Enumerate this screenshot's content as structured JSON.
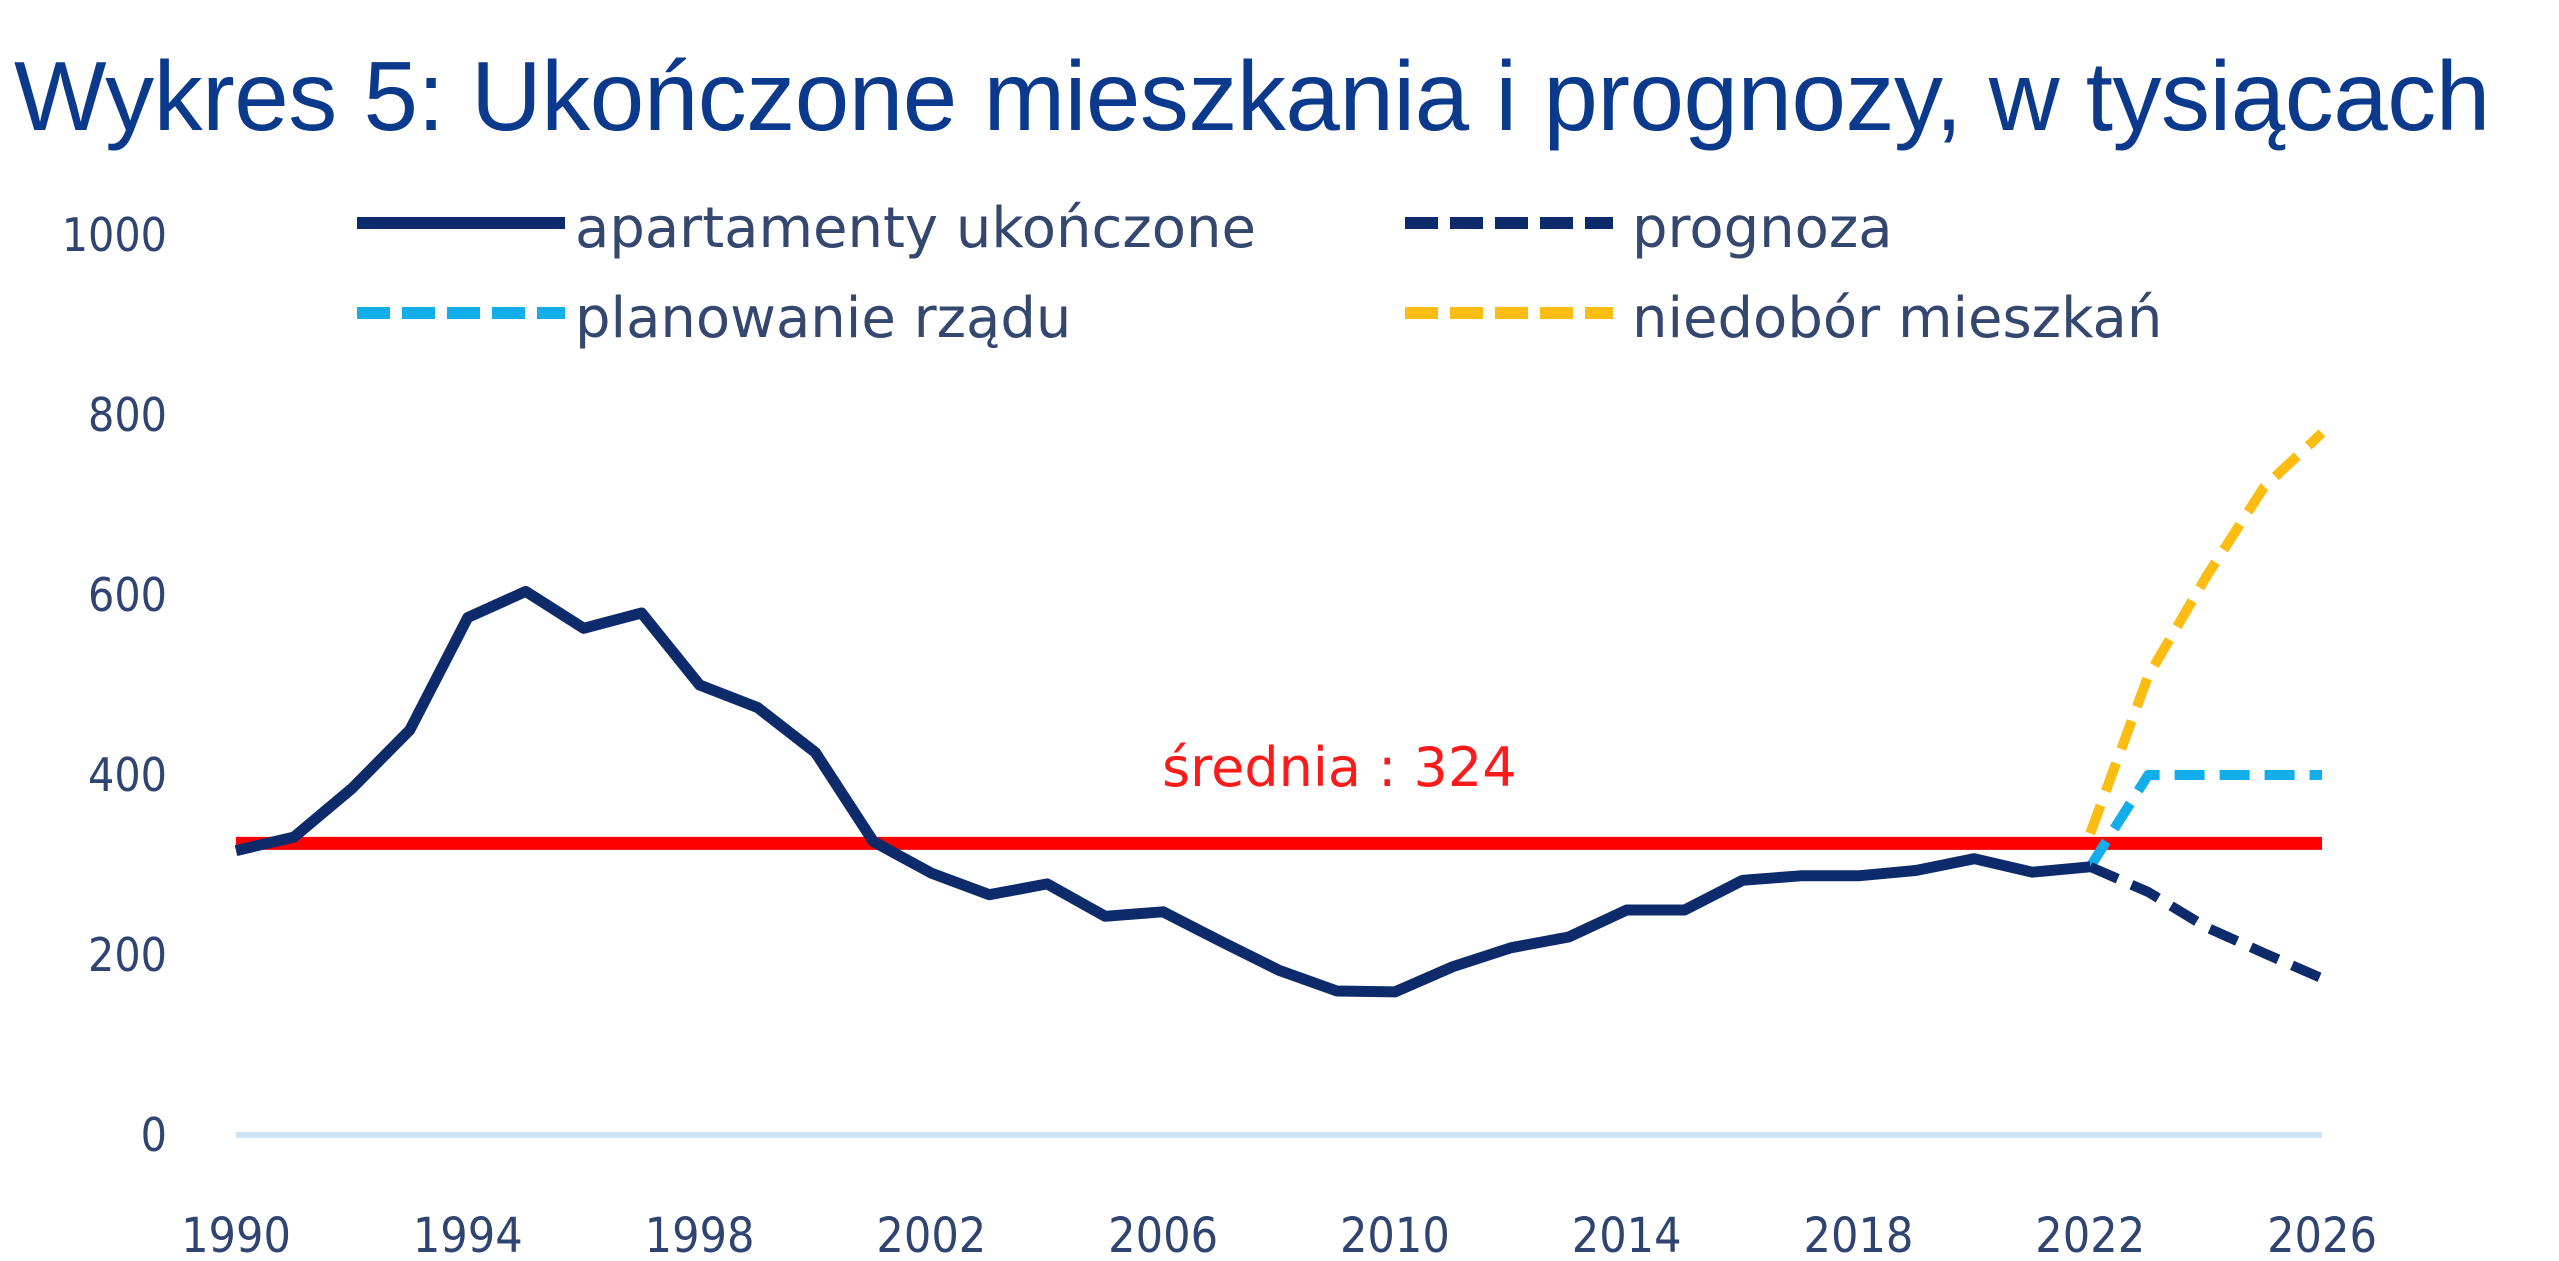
{
  "title": "Wykres 5: Ukończone mieszkania i prognozy, w tysiącach",
  "legend": [
    {
      "label": "apartamenty ukończone",
      "color": "#0d2b6b",
      "style": "solid"
    },
    {
      "label": "prognoza",
      "color": "#0d2b6b",
      "style": "dashed"
    },
    {
      "label": "planowanie rządu",
      "color": "#12aeea",
      "style": "dashed"
    },
    {
      "label": "niedobór mieszkań",
      "color": "#fbbd12",
      "style": "dashed"
    }
  ],
  "average_label": "średnia : 324",
  "colors": {
    "average": "#ff0000",
    "gridline": "#cfe3f7",
    "title": "#0b3a8c",
    "axis_text": "#2f4470"
  },
  "y_ticks": [
    "0",
    "200",
    "400",
    "600",
    "800",
    "1000"
  ],
  "x_ticks": [
    "1990",
    "1994",
    "1998",
    "2002",
    "2006",
    "2010",
    "2014",
    "2018",
    "2022",
    "2026"
  ],
  "chart_data": {
    "type": "line",
    "title": "Wykres 5: Ukończone mieszkania i prognozy, w tysiącach",
    "xlabel": "",
    "ylabel": "",
    "ylim": [
      0,
      1000
    ],
    "xlim": [
      1990,
      2026
    ],
    "grid": "only baseline at 0",
    "legend_position": "top",
    "series": [
      {
        "name": "apartamenty ukończone",
        "style": "solid",
        "color": "#0d2b6b",
        "x": [
          1990,
          1991,
          1992,
          1993,
          1994,
          1995,
          1996,
          1997,
          1998,
          1999,
          2000,
          2001,
          2002,
          2003,
          2004,
          2005,
          2006,
          2007,
          2008,
          2009,
          2010,
          2011,
          2012,
          2013,
          2014,
          2015,
          2016,
          2017,
          2018,
          2019,
          2020,
          2021,
          2022
        ],
        "values": [
          316,
          331,
          385,
          450,
          575,
          604,
          563,
          580,
          500,
          475,
          425,
          326,
          291,
          267,
          279,
          243,
          248,
          215,
          183,
          160,
          159,
          187,
          208,
          220,
          250,
          250,
          283,
          288,
          288,
          294,
          307,
          292,
          298
        ]
      },
      {
        "name": "prognoza",
        "style": "dashed",
        "color": "#0d2b6b",
        "x": [
          2022,
          2023,
          2024,
          2025,
          2026
        ],
        "values": [
          298,
          270,
          231,
          202,
          174
        ]
      },
      {
        "name": "planowanie rządu",
        "style": "dashed",
        "color": "#12aeea",
        "x": [
          2022,
          2023,
          2024,
          2025,
          2026
        ],
        "values": [
          298,
          400,
          400,
          400,
          400
        ]
      },
      {
        "name": "niedobór mieszkań",
        "style": "dashed",
        "color": "#fbbd12",
        "x": [
          2022,
          2023,
          2024,
          2025,
          2026
        ],
        "values": [
          335,
          510,
          620,
          720,
          780
        ]
      }
    ],
    "reference_lines": [
      {
        "name": "średnia",
        "value": 324,
        "label": "średnia : 324",
        "color": "#ff0000"
      }
    ]
  }
}
